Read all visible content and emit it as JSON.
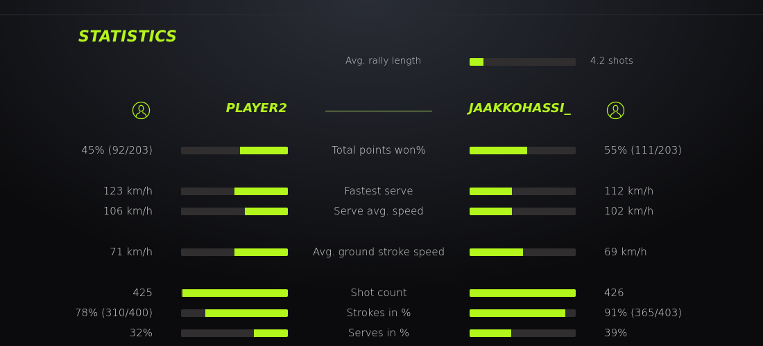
{
  "title": "STATISTICS",
  "accent": "#b3f61c",
  "rally": {
    "label": "Avg. rally length",
    "value": "4.2 shots",
    "fill": 0.13
  },
  "players": {
    "left": {
      "name": "PLAYER2",
      "icon": "user-circle-icon"
    },
    "right": {
      "name": "JAAKKOHASSI_",
      "icon": "user-circle-icon"
    }
  },
  "stats": [
    {
      "label": "Total points won%",
      "left": "45% (92/203)",
      "right": "55% (111/203)",
      "left_fill": 0.45,
      "right_fill": 0.54
    },
    {
      "label": "Fastest serve",
      "left": "123 km/h",
      "right": "112 km/h",
      "left_fill": 0.5,
      "right_fill": 0.4
    },
    {
      "label": "Serve avg. speed",
      "left": "106 km/h",
      "right": "102 km/h",
      "left_fill": 0.4,
      "right_fill": 0.4
    },
    {
      "label": "Avg. ground stroke speed",
      "left": "71 km/h",
      "right": "69 km/h",
      "left_fill": 0.5,
      "right_fill": 0.5
    },
    {
      "label": "Shot count",
      "left": "425",
      "right": "426",
      "left_fill": 0.99,
      "right_fill": 1.0
    },
    {
      "label": "Strokes in %",
      "left": "78% (310/400)",
      "right": "91% (365/403)",
      "left_fill": 0.77,
      "right_fill": 0.9
    },
    {
      "label": "Serves in %",
      "left": "32%",
      "right": "39%",
      "left_fill": 0.32,
      "right_fill": 0.39
    }
  ]
}
